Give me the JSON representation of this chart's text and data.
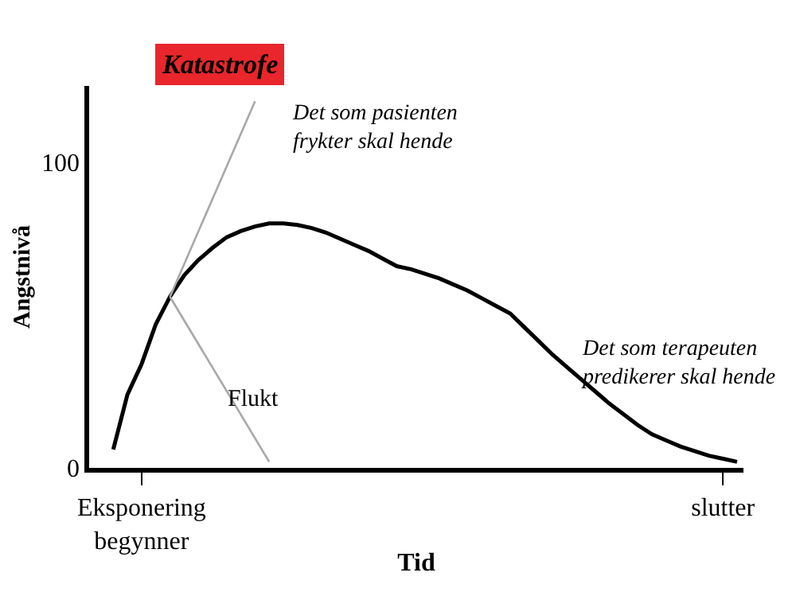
{
  "chart_data": {
    "type": "line",
    "xlabel": "Tid",
    "ylabel": "Angstnivå",
    "categories": [
      null,
      null,
      null,
      "Eksponering\nbegynner",
      null,
      null,
      null,
      null,
      null,
      null,
      null,
      null,
      null,
      null,
      null,
      null,
      null,
      null,
      null,
      null,
      null,
      null,
      null,
      null,
      null,
      null,
      null,
      null,
      null,
      null,
      null,
      null,
      null,
      null,
      null,
      null,
      null,
      null,
      null,
      null,
      null,
      null,
      null,
      null,
      "slutter",
      null
    ],
    "ylim": [
      0,
      125
    ],
    "yticks": [
      0,
      100
    ],
    "series": [
      {
        "color": "#000000",
        "values": [
          null,
          6,
          24,
          34,
          47,
          56,
          63,
          68,
          72,
          75.5,
          77.5,
          79,
          80,
          80,
          79.5,
          78.5,
          77,
          75,
          73,
          71,
          68.5,
          66,
          65,
          63.5,
          62,
          60,
          58,
          55.5,
          53,
          50.5,
          46,
          41.5,
          37,
          33,
          29,
          25,
          21,
          17.5,
          14,
          11,
          9,
          7,
          5.5,
          4,
          3,
          2
        ]
      },
      {
        "color": "#a8a8a8",
        "values": [
          null,
          null,
          null,
          null,
          null,
          56,
          null,
          null,
          null,
          null,
          null,
          120,
          null,
          null,
          null,
          null,
          null,
          null,
          null,
          null,
          null,
          null,
          null,
          null,
          null,
          null,
          null,
          null,
          null,
          null,
          null,
          null,
          null,
          null,
          null,
          null,
          null,
          null,
          null,
          null,
          null,
          null,
          null,
          null,
          null,
          null
        ]
      },
      {
        "color": "#a8a8a8",
        "values": [
          null,
          null,
          null,
          null,
          null,
          56,
          null,
          null,
          null,
          null,
          null,
          null,
          2,
          null,
          null,
          null,
          null,
          null,
          null,
          null,
          null,
          null,
          null,
          null,
          null,
          null,
          null,
          null,
          null,
          null,
          null,
          null,
          null,
          null,
          null,
          null,
          null,
          null,
          null,
          null,
          null,
          null,
          null,
          null,
          null,
          null
        ]
      }
    ],
    "annotations": [
      "Katastrofe",
      "Det som pasienten\nfrykter skal hende",
      "Flukt",
      "Det som terapeuten\npredikerer skal hende"
    ],
    "marker": "none",
    "line_style": "solid"
  }
}
